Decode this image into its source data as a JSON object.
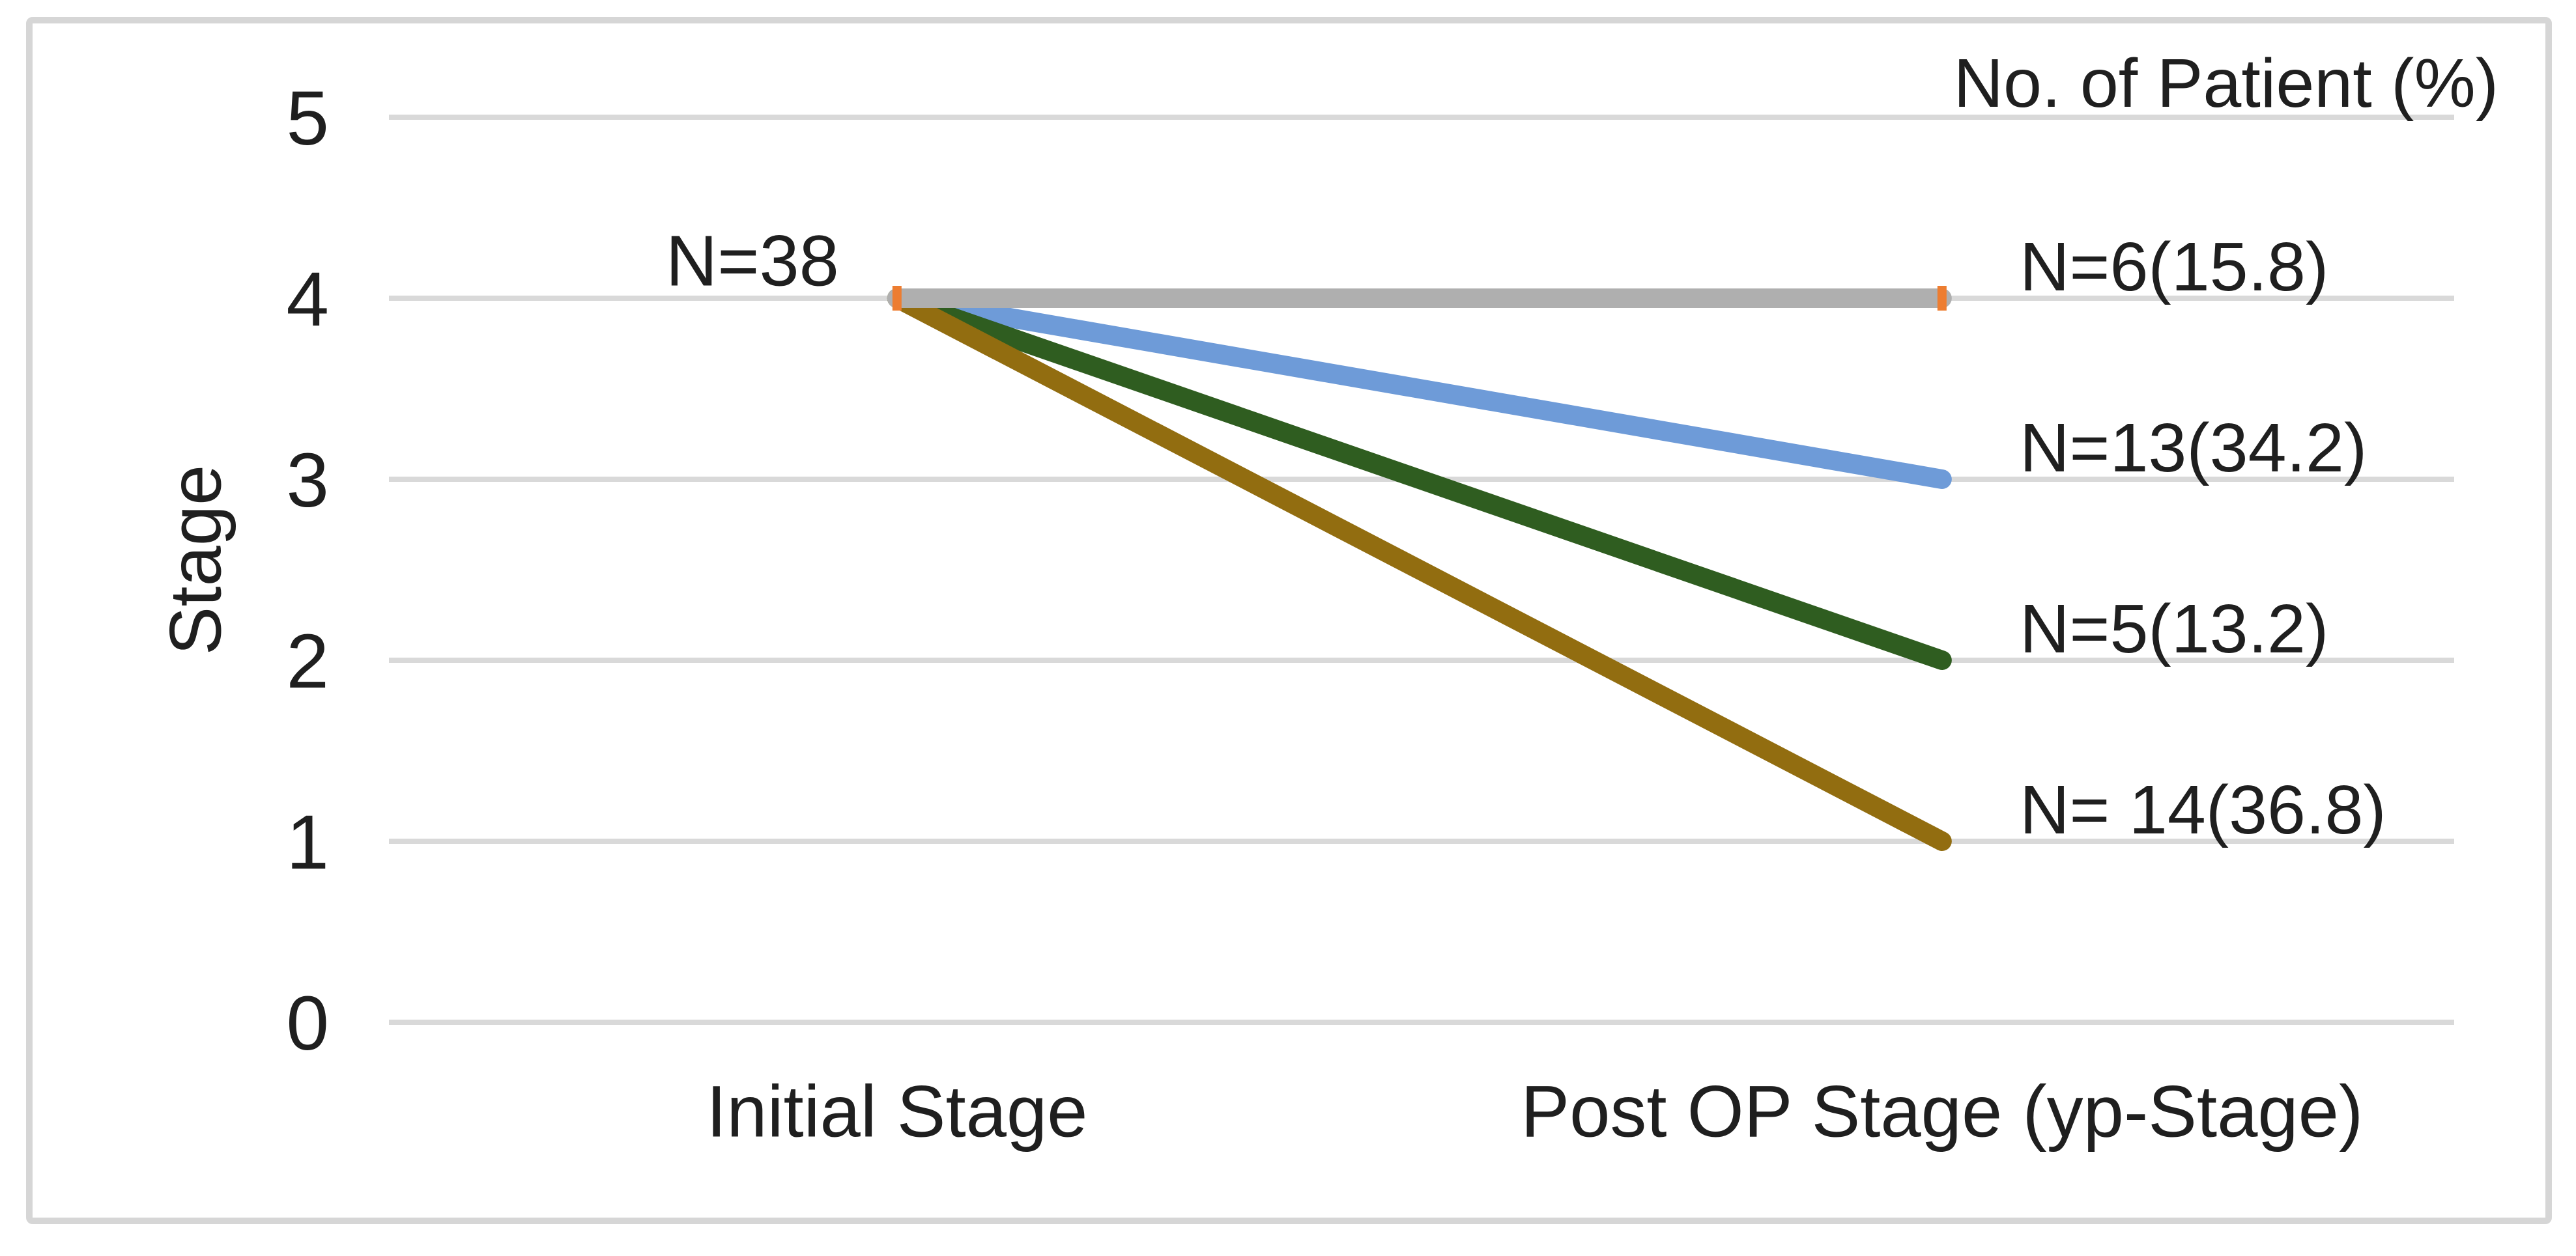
{
  "chart_data": {
    "type": "line",
    "title": "No. of Patient (%)",
    "ylabel": "Stage",
    "ylim": [
      0,
      5
    ],
    "yticks": [
      5,
      4,
      3,
      2,
      1,
      0
    ],
    "ytick_labels": [
      "5",
      "4",
      "3",
      "2",
      "1",
      "0"
    ],
    "categories": [
      "Initial Stage",
      "Post OP Stage (yp-Stage)"
    ],
    "start_annotation": "N=38",
    "grid": true,
    "gridline_color": "#D9D9D9",
    "legend": "none",
    "series": [
      {
        "values": [
          4,
          4
        ],
        "color": "#AFAFAF",
        "marker_color": "#ED7D31",
        "label": "N=6(15.8)"
      },
      {
        "values": [
          4,
          3
        ],
        "color": "#6E9BD8",
        "label": "N=13(34.2)"
      },
      {
        "values": [
          4,
          2
        ],
        "color": "#2F5D20",
        "label": "N=5(13.2)"
      },
      {
        "values": [
          4,
          1
        ],
        "color": "#926D10",
        "label": "N= 14(36.8)"
      }
    ]
  }
}
